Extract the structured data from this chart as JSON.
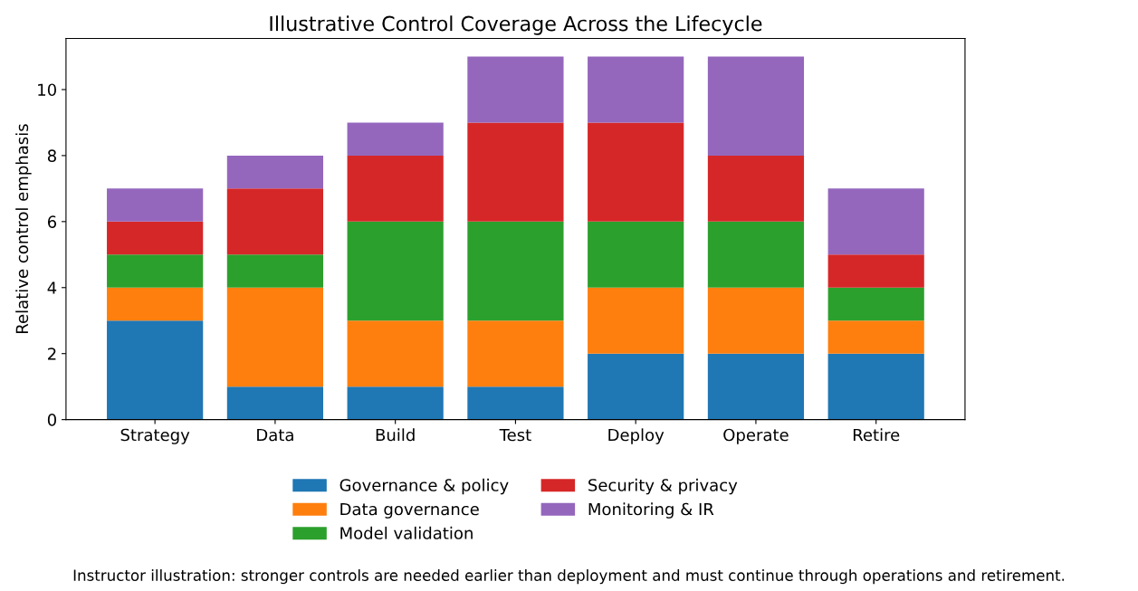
{
  "chart_data": {
    "type": "bar",
    "title": "Illustrative Control Coverage Across the Lifecycle",
    "ylabel": "Relative control emphasis",
    "categories": [
      "Strategy",
      "Data",
      "Build",
      "Test",
      "Deploy",
      "Operate",
      "Retire"
    ],
    "stacked": true,
    "series": [
      {
        "name": "Governance & policy",
        "color": "#1f77b4",
        "values": [
          3,
          1,
          1,
          1,
          2,
          2,
          2
        ]
      },
      {
        "name": "Data governance",
        "color": "#ff7f0e",
        "values": [
          1,
          3,
          2,
          2,
          2,
          2,
          1
        ]
      },
      {
        "name": "Model validation",
        "color": "#2ca02c",
        "values": [
          1,
          1,
          3,
          3,
          2,
          2,
          1
        ]
      },
      {
        "name": "Security & privacy",
        "color": "#d62728",
        "values": [
          1,
          2,
          2,
          3,
          3,
          2,
          1
        ]
      },
      {
        "name": "Monitoring & IR",
        "color": "#9467bd",
        "values": [
          1,
          1,
          1,
          2,
          2,
          3,
          2
        ]
      }
    ],
    "ylim": [
      0,
      11.55
    ],
    "yticks": [
      0,
      2,
      4,
      6,
      8,
      10
    ],
    "grid": false,
    "legend": "bottom",
    "annotations": [
      "Instructor illustration: stronger controls are needed earlier than deployment and must continue through operations and retirement."
    ]
  }
}
